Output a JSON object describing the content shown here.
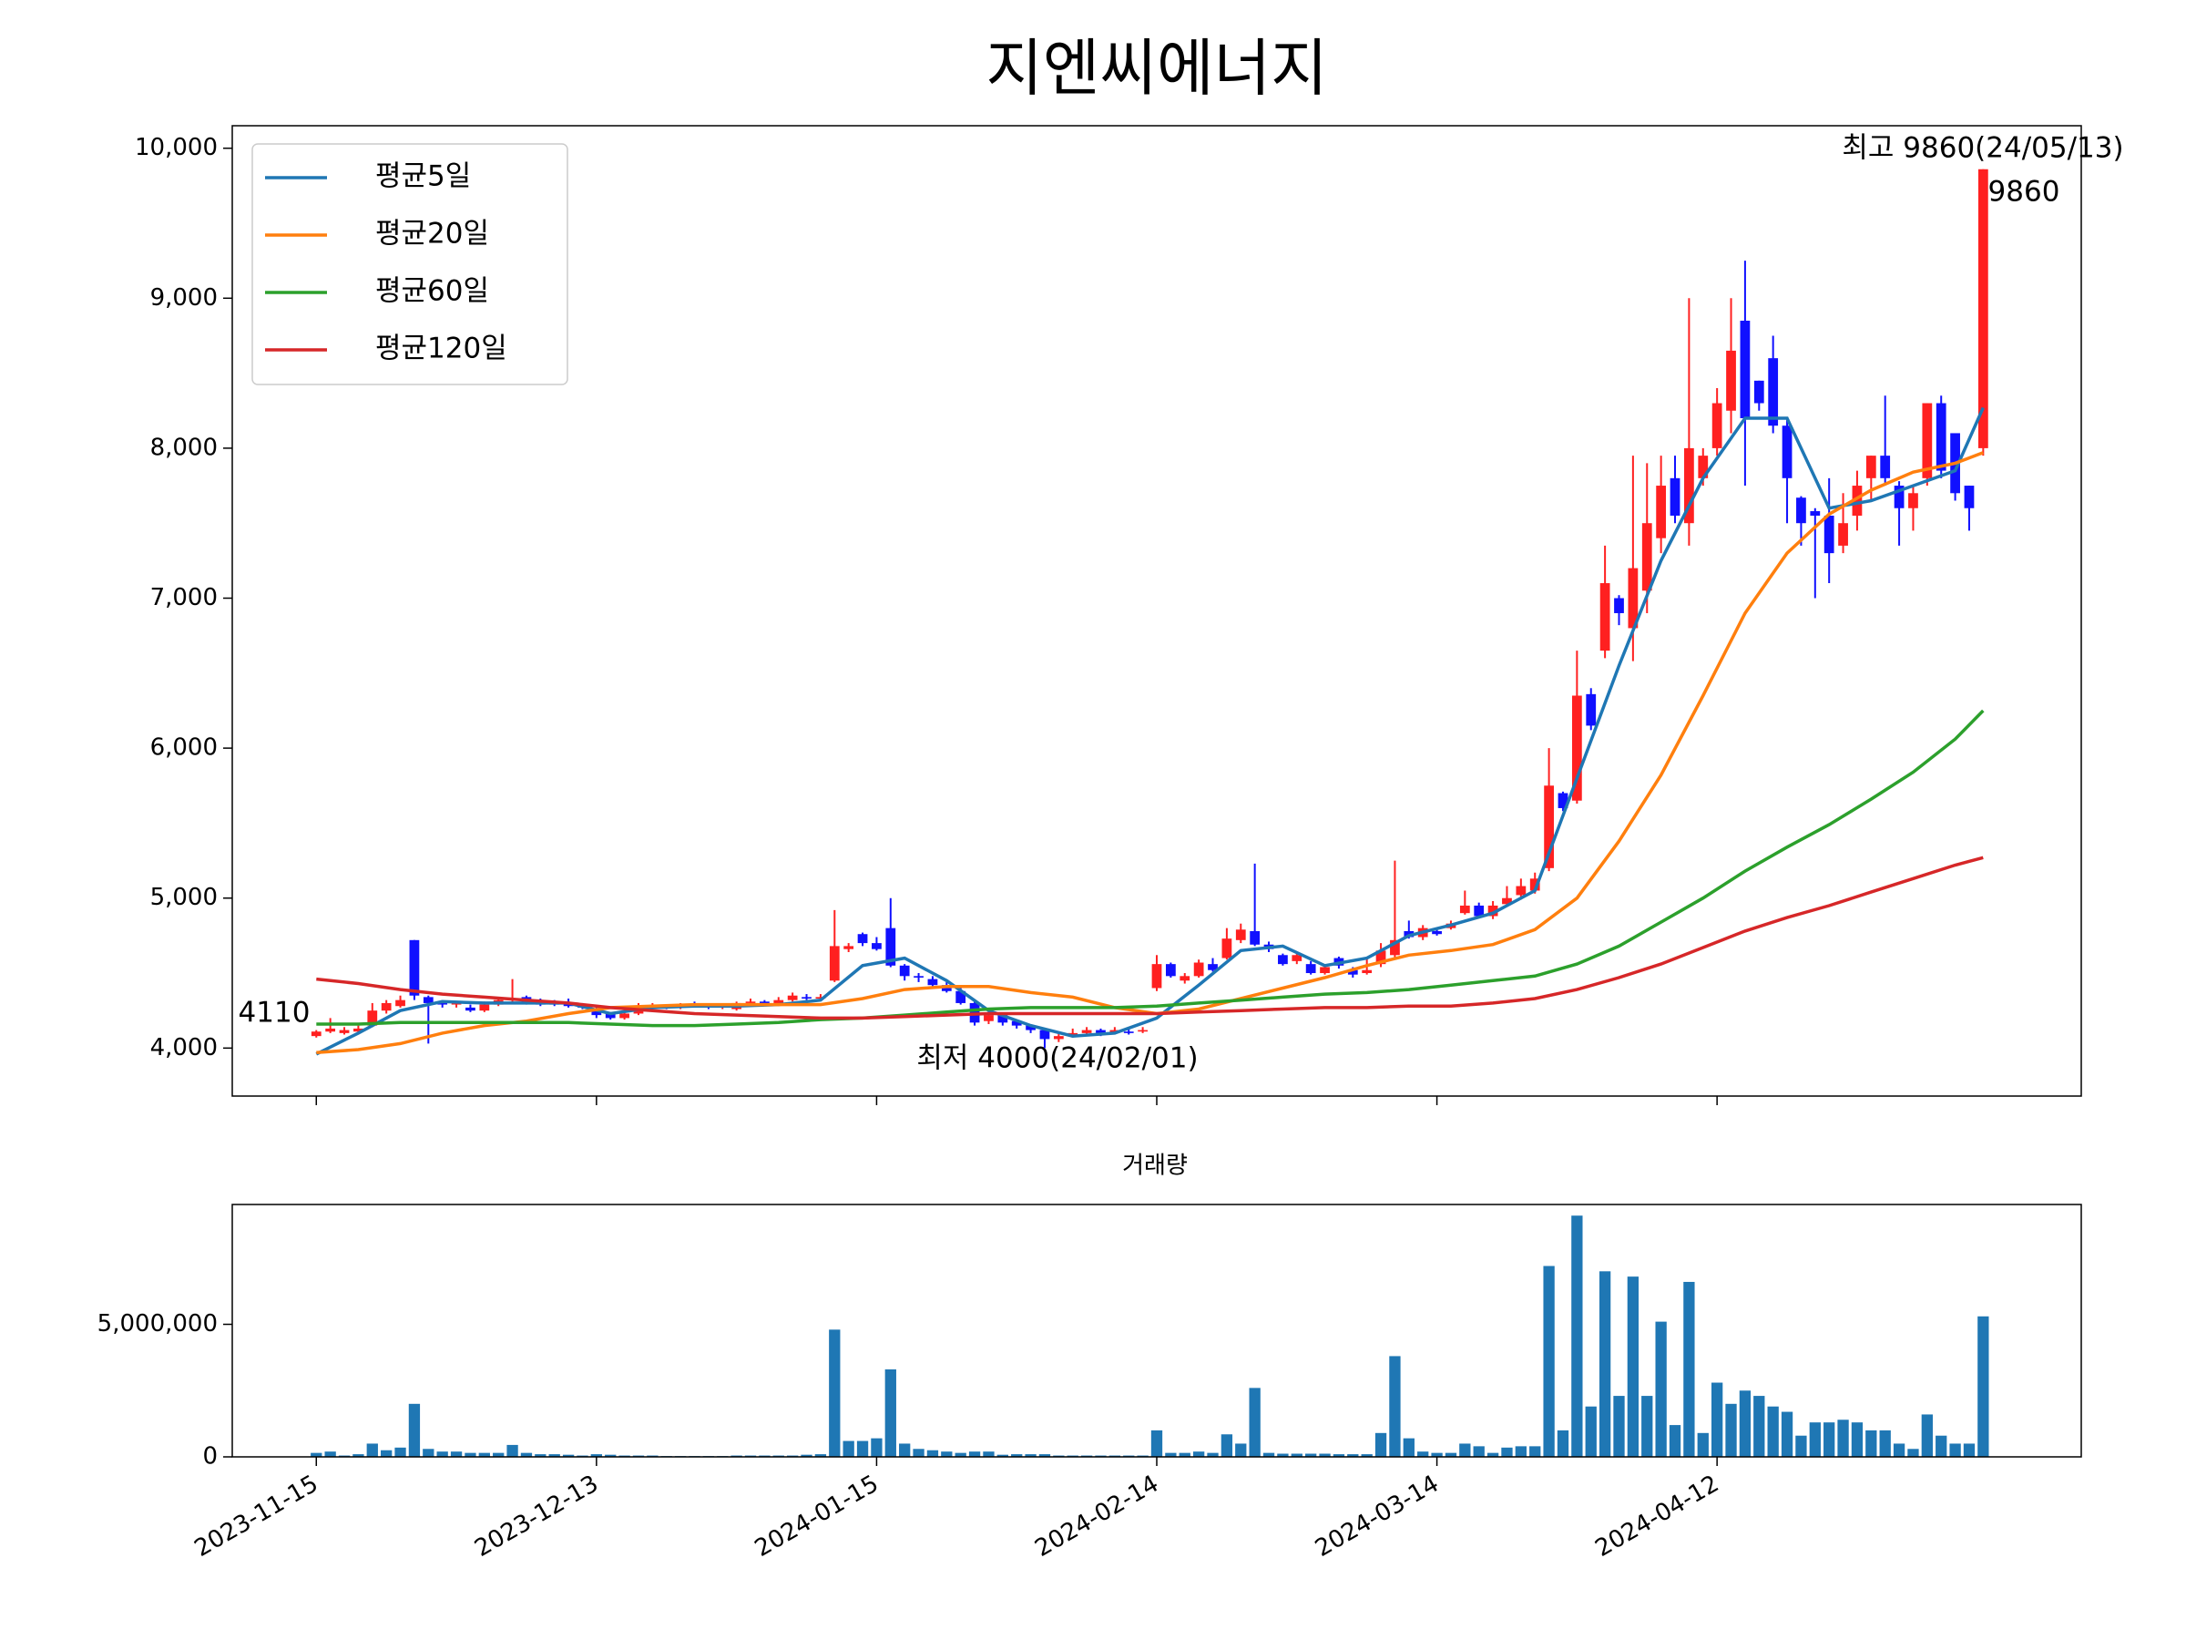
{
  "chart_data": [
    {
      "type": "candlestick",
      "title": "지엔씨에너지",
      "up_color": "#ff2020",
      "down_color": "#1010ff",
      "xlim": [
        -6,
        126
      ],
      "ylim": [
        3680,
        10150
      ],
      "yticks": [
        {
          "value": 4000,
          "label": "4,000"
        },
        {
          "value": 5000,
          "label": "5,000"
        },
        {
          "value": 6000,
          "label": "6,000"
        },
        {
          "value": 7000,
          "label": "7,000"
        },
        {
          "value": 8000,
          "label": "8,000"
        },
        {
          "value": 9000,
          "label": "9,000"
        },
        {
          "value": 10000,
          "label": "10,000"
        }
      ],
      "legend": "upper left",
      "open": [
        4080,
        4110,
        4100,
        4110,
        4150,
        4250,
        4280,
        4720,
        4340,
        4300,
        4290,
        4270,
        4250,
        4290,
        4320,
        4340,
        4310,
        4300,
        4300,
        4290,
        4260,
        4230,
        4200,
        4230,
        4270,
        4280,
        4270,
        4290,
        4280,
        4270,
        4260,
        4300,
        4310,
        4290,
        4320,
        4340,
        4330,
        4450,
        4660,
        4760,
        4700,
        4800,
        4550,
        4480,
        4460,
        4420,
        4380,
        4300,
        4180,
        4220,
        4180,
        4150,
        4120,
        4060,
        4080,
        4100,
        4120,
        4100,
        4110,
        4110,
        4400,
        4560,
        4450,
        4480,
        4560,
        4600,
        4720,
        4780,
        4690,
        4620,
        4580,
        4560,
        4500,
        4600,
        4520,
        4500,
        4560,
        4620,
        4780,
        4740,
        4780,
        4800,
        4900,
        4950,
        4880,
        4960,
        5020,
        5050,
        5200,
        5700,
        5650,
        6360,
        6650,
        7000,
        6800,
        7050,
        7400,
        7800,
        7500,
        7800,
        8000,
        8250,
        8850,
        8450,
        8600,
        8150,
        7670,
        7580,
        7550,
        7350,
        7550,
        7800,
        7950,
        7750,
        7600,
        7800,
        8300,
        8100,
        7750,
        8000
      ],
      "close": [
        4110,
        4130,
        4120,
        4130,
        4250,
        4300,
        4320,
        4350,
        4300,
        4290,
        4300,
        4250,
        4290,
        4320,
        4330,
        4300,
        4290,
        4290,
        4280,
        4270,
        4220,
        4200,
        4230,
        4270,
        4280,
        4270,
        4290,
        4280,
        4270,
        4280,
        4300,
        4310,
        4290,
        4320,
        4350,
        4330,
        4340,
        4680,
        4680,
        4700,
        4660,
        4550,
        4480,
        4470,
        4420,
        4380,
        4300,
        4170,
        4220,
        4170,
        4150,
        4120,
        4060,
        4080,
        4100,
        4120,
        4100,
        4120,
        4100,
        4120,
        4560,
        4480,
        4480,
        4570,
        4520,
        4730,
        4790,
        4690,
        4660,
        4560,
        4620,
        4500,
        4540,
        4550,
        4490,
        4520,
        4650,
        4720,
        4740,
        4800,
        4760,
        4830,
        4950,
        4880,
        4950,
        5000,
        5080,
        5130,
        5750,
        5600,
        6350,
        6150,
        7100,
        6900,
        7200,
        7500,
        7750,
        7550,
        8000,
        7950,
        8300,
        8650,
        8200,
        8300,
        8150,
        7800,
        7500,
        7550,
        7300,
        7500,
        7750,
        7950,
        7800,
        7600,
        7700,
        8300,
        7850,
        7700,
        7600,
        9860
      ],
      "high": [
        4120,
        4200,
        4140,
        4150,
        4300,
        4320,
        4350,
        4720,
        4350,
        4320,
        4310,
        4290,
        4310,
        4340,
        4460,
        4350,
        4330,
        4320,
        4330,
        4300,
        4280,
        4240,
        4250,
        4300,
        4300,
        4290,
        4300,
        4310,
        4290,
        4290,
        4310,
        4330,
        4320,
        4340,
        4370,
        4360,
        4360,
        4920,
        4700,
        4770,
        4740,
        5000,
        4560,
        4500,
        4480,
        4440,
        4400,
        4310,
        4240,
        4230,
        4190,
        4160,
        4130,
        4100,
        4130,
        4140,
        4130,
        4140,
        4130,
        4140,
        4620,
        4570,
        4500,
        4590,
        4600,
        4800,
        4830,
        5230,
        4710,
        4630,
        4640,
        4580,
        4560,
        4610,
        4540,
        4600,
        4700,
        5250,
        4850,
        4820,
        4800,
        4850,
        5050,
        4970,
        4980,
        5080,
        5130,
        5170,
        6000,
        5710,
        6650,
        6400,
        7350,
        7020,
        7950,
        7900,
        7950,
        7950,
        9000,
        8000,
        8400,
        9000,
        9250,
        8450,
        8750,
        8200,
        7680,
        7600,
        7800,
        7700,
        7850,
        7950,
        8350,
        7780,
        7750,
        8300,
        8350,
        8100,
        7750,
        9860
      ],
      "low": [
        4070,
        4100,
        4090,
        4100,
        4140,
        4230,
        4270,
        4320,
        4030,
        4270,
        4270,
        4240,
        4240,
        4280,
        4300,
        4290,
        4280,
        4280,
        4270,
        4260,
        4200,
        4190,
        4190,
        4220,
        4260,
        4260,
        4260,
        4270,
        4260,
        4260,
        4250,
        4290,
        4280,
        4280,
        4310,
        4320,
        4320,
        4440,
        4640,
        4680,
        4650,
        4540,
        4450,
        4440,
        4410,
        4370,
        4290,
        4150,
        4160,
        4150,
        4130,
        4100,
        4000,
        4040,
        4070,
        4090,
        4080,
        4090,
        4090,
        4100,
        4380,
        4470,
        4430,
        4470,
        4510,
        4590,
        4700,
        4680,
        4640,
        4550,
        4560,
        4490,
        4490,
        4530,
        4470,
        4490,
        4540,
        4600,
        4730,
        4720,
        4750,
        4790,
        4890,
        4870,
        4860,
        4950,
        4990,
        5030,
        5180,
        5580,
        5630,
        6120,
        6600,
        6820,
        6580,
        6900,
        7300,
        7500,
        7350,
        7750,
        7950,
        8100,
        7750,
        8250,
        8100,
        7500,
        7350,
        7000,
        7100,
        7300,
        7450,
        7650,
        7750,
        7350,
        7450,
        7750,
        7800,
        7650,
        7450,
        7950
      ],
      "series": [
        {
          "name": "평균5일",
          "color": "#1f77b4",
          "x": [
            0,
            3,
            6,
            9,
            12,
            15,
            18,
            21,
            24,
            27,
            30,
            33,
            36,
            39,
            42,
            45,
            48,
            51,
            54,
            57,
            60,
            63,
            66,
            69,
            72,
            75,
            78,
            81,
            84,
            87,
            90,
            93,
            96,
            99,
            102,
            105,
            108,
            111,
            114,
            117,
            119
          ],
          "values": [
            3960,
            4100,
            4250,
            4310,
            4300,
            4300,
            4300,
            4230,
            4270,
            4280,
            4280,
            4290,
            4320,
            4550,
            4600,
            4450,
            4250,
            4150,
            4080,
            4100,
            4200,
            4420,
            4650,
            4680,
            4550,
            4600,
            4750,
            4820,
            4900,
            5050,
            5800,
            6550,
            7250,
            7800,
            8200,
            8200,
            7600,
            7650,
            7750,
            7850,
            8270
          ]
        },
        {
          "name": "평균20일",
          "color": "#ff7f0e",
          "x": [
            0,
            3,
            6,
            9,
            12,
            15,
            18,
            21,
            24,
            27,
            30,
            33,
            36,
            39,
            42,
            45,
            48,
            51,
            54,
            57,
            60,
            63,
            66,
            69,
            72,
            75,
            78,
            81,
            84,
            87,
            90,
            93,
            96,
            99,
            102,
            105,
            108,
            111,
            114,
            117,
            119
          ],
          "values": [
            3970,
            3990,
            4030,
            4100,
            4150,
            4180,
            4230,
            4270,
            4280,
            4290,
            4290,
            4290,
            4290,
            4330,
            4390,
            4410,
            4410,
            4370,
            4340,
            4270,
            4230,
            4260,
            4330,
            4400,
            4470,
            4550,
            4620,
            4650,
            4690,
            4790,
            5000,
            5380,
            5820,
            6350,
            6900,
            7300,
            7560,
            7720,
            7840,
            7900,
            7970
          ]
        },
        {
          "name": "평균60일",
          "color": "#2ca02c",
          "x": [
            0,
            3,
            6,
            9,
            12,
            15,
            18,
            21,
            24,
            27,
            30,
            33,
            36,
            39,
            42,
            45,
            48,
            51,
            54,
            57,
            60,
            63,
            66,
            69,
            72,
            75,
            78,
            81,
            84,
            87,
            90,
            93,
            96,
            99,
            102,
            105,
            108,
            111,
            114,
            117,
            119
          ],
          "values": [
            4160,
            4160,
            4170,
            4170,
            4170,
            4170,
            4170,
            4160,
            4150,
            4150,
            4160,
            4170,
            4190,
            4200,
            4220,
            4240,
            4260,
            4270,
            4270,
            4270,
            4280,
            4300,
            4320,
            4340,
            4360,
            4370,
            4390,
            4420,
            4450,
            4480,
            4560,
            4680,
            4840,
            5000,
            5180,
            5340,
            5490,
            5660,
            5840,
            6060,
            6250
          ]
        },
        {
          "name": "평균120일",
          "color": "#d62728",
          "x": [
            0,
            3,
            6,
            9,
            12,
            15,
            18,
            21,
            24,
            27,
            30,
            33,
            36,
            39,
            42,
            45,
            48,
            51,
            54,
            57,
            60,
            63,
            66,
            69,
            72,
            75,
            78,
            81,
            84,
            87,
            90,
            93,
            96,
            99,
            102,
            105,
            108,
            111,
            114,
            117,
            119
          ],
          "values": [
            4460,
            4430,
            4390,
            4360,
            4340,
            4320,
            4300,
            4270,
            4250,
            4230,
            4220,
            4210,
            4200,
            4200,
            4210,
            4220,
            4230,
            4230,
            4230,
            4230,
            4230,
            4240,
            4250,
            4260,
            4270,
            4270,
            4280,
            4280,
            4300,
            4330,
            4390,
            4470,
            4560,
            4670,
            4780,
            4870,
            4950,
            5040,
            5130,
            5220,
            5270
          ]
        }
      ],
      "annotations": [
        {
          "text": "최고 9860(24/05/13)",
          "color": "#ff0000"
        },
        {
          "text": "9860",
          "color": "#000000"
        },
        {
          "text": "4110",
          "color": "#000000"
        },
        {
          "text": "최저 4000(24/02/01)",
          "color": "#0000ff"
        }
      ]
    },
    {
      "type": "bar",
      "title": "거래량",
      "color": "#1f77b4",
      "xlim": [
        -6,
        126
      ],
      "ylim": [
        0,
        9520000
      ],
      "yticks": [
        0,
        {
          "value": 5000000,
          "label": "5,000,000"
        }
      ],
      "xticks": [
        {
          "value": 0,
          "label": "2023-11-15"
        },
        {
          "value": 20,
          "label": "2023-12-13"
        },
        {
          "value": 40,
          "label": "2024-01-15"
        },
        {
          "value": 60,
          "label": "2024-02-14"
        },
        {
          "value": 80,
          "label": "2024-03-14"
        },
        {
          "value": 100,
          "label": "2024-04-12"
        }
      ],
      "values": [
        150000,
        200000,
        50000,
        100000,
        500000,
        250000,
        350000,
        2000000,
        300000,
        200000,
        200000,
        150000,
        150000,
        150000,
        450000,
        150000,
        100000,
        100000,
        80000,
        50000,
        100000,
        80000,
        50000,
        50000,
        50000,
        30000,
        30000,
        30000,
        30000,
        30000,
        50000,
        50000,
        50000,
        50000,
        50000,
        80000,
        100000,
        4800000,
        600000,
        600000,
        700000,
        3300000,
        500000,
        300000,
        250000,
        200000,
        150000,
        200000,
        200000,
        80000,
        100000,
        100000,
        100000,
        50000,
        50000,
        50000,
        50000,
        50000,
        50000,
        50000,
        1000000,
        150000,
        150000,
        200000,
        150000,
        850000,
        500000,
        2600000,
        150000,
        120000,
        120000,
        120000,
        120000,
        100000,
        100000,
        100000,
        900000,
        3800000,
        700000,
        200000,
        150000,
        150000,
        500000,
        400000,
        150000,
        350000,
        400000,
        400000,
        7200000,
        1000000,
        9100000,
        1900000,
        7000000,
        2300000,
        6800000,
        2300000,
        5100000,
        1200000,
        6600000,
        900000,
        2800000,
        2000000,
        2500000,
        2300000,
        1900000,
        1700000,
        800000,
        1300000,
        1300000,
        1400000,
        1300000,
        1000000,
        1000000,
        500000,
        300000,
        1600000,
        800000,
        500000,
        500000,
        5300000
      ]
    }
  ]
}
